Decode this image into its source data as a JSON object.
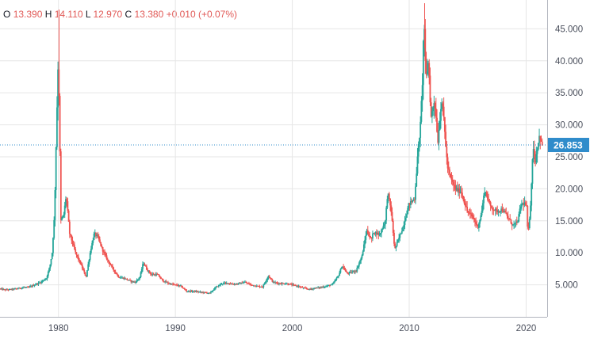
{
  "legend": {
    "open_key": "O",
    "open": "13.390",
    "high_key": "H",
    "high": "14.110",
    "low_key": "L",
    "low": "12.970",
    "close_key": "C",
    "close": "13.380",
    "change": "+0.010 (+0.07%)"
  },
  "last_price_label": "26.853",
  "colors": {
    "up": "#26a69a",
    "down": "#ef5350",
    "grid": "#e6e6e6",
    "axis_text": "#4a4f5c",
    "price_tag": "#2f8ccb",
    "price_line": "#2f8ccb"
  },
  "chart_data": {
    "type": "candlestick",
    "title": "",
    "xlabel": "",
    "ylabel": "",
    "xlim": [
      1975.0,
      2021.8
    ],
    "ylim": [
      0,
      49.5
    ],
    "x_ticks": [
      "1980",
      "1990",
      "2000",
      "2010",
      "2020"
    ],
    "y_ticks": [
      "5.000",
      "10.000",
      "15.000",
      "20.000",
      "25.000",
      "30.000",
      "35.000",
      "40.000",
      "45.000"
    ],
    "grid": true,
    "last_price": 26.853,
    "price_path": [
      [
        1975.0,
        4.4
      ],
      [
        1975.5,
        4.2
      ],
      [
        1976.0,
        4.3
      ],
      [
        1976.5,
        4.4
      ],
      [
        1977.0,
        4.6
      ],
      [
        1977.5,
        4.6
      ],
      [
        1978.0,
        5.0
      ],
      [
        1978.5,
        5.4
      ],
      [
        1979.0,
        6.0
      ],
      [
        1979.3,
        7.8
      ],
      [
        1979.5,
        10.0
      ],
      [
        1979.7,
        16.0
      ],
      [
        1979.85,
        28.0
      ],
      [
        1980.0,
        39.0
      ],
      [
        1980.1,
        34.0
      ],
      [
        1980.25,
        15.0
      ],
      [
        1980.5,
        16.0
      ],
      [
        1980.7,
        19.0
      ],
      [
        1981.0,
        13.0
      ],
      [
        1981.5,
        10.0
      ],
      [
        1982.0,
        8.0
      ],
      [
        1982.4,
        6.2
      ],
      [
        1982.8,
        10.5
      ],
      [
        1983.1,
        13.0
      ],
      [
        1983.4,
        12.5
      ],
      [
        1983.8,
        10.5
      ],
      [
        1984.2,
        9.0
      ],
      [
        1984.7,
        7.5
      ],
      [
        1985.2,
        6.2
      ],
      [
        1985.7,
        6.0
      ],
      [
        1986.2,
        5.6
      ],
      [
        1986.6,
        5.4
      ],
      [
        1987.0,
        6.2
      ],
      [
        1987.3,
        8.5
      ],
      [
        1987.6,
        7.4
      ],
      [
        1988.0,
        6.6
      ],
      [
        1988.5,
        6.6
      ],
      [
        1989.0,
        5.6
      ],
      [
        1989.5,
        5.2
      ],
      [
        1990.0,
        5.0
      ],
      [
        1990.5,
        4.8
      ],
      [
        1991.0,
        4.0
      ],
      [
        1991.5,
        4.0
      ],
      [
        1992.0,
        3.9
      ],
      [
        1992.5,
        3.8
      ],
      [
        1993.0,
        3.7
      ],
      [
        1993.5,
        4.6
      ],
      [
        1994.0,
        5.2
      ],
      [
        1994.5,
        5.3
      ],
      [
        1995.0,
        5.1
      ],
      [
        1995.5,
        5.2
      ],
      [
        1996.0,
        5.4
      ],
      [
        1996.5,
        5.0
      ],
      [
        1997.0,
        4.8
      ],
      [
        1997.5,
        4.7
      ],
      [
        1998.0,
        6.4
      ],
      [
        1998.4,
        5.4
      ],
      [
        1999.0,
        5.2
      ],
      [
        1999.5,
        5.2
      ],
      [
        2000.0,
        5.0
      ],
      [
        2000.5,
        4.8
      ],
      [
        2001.0,
        4.5
      ],
      [
        2001.5,
        4.3
      ],
      [
        2002.0,
        4.5
      ],
      [
        2002.5,
        4.6
      ],
      [
        2003.0,
        4.8
      ],
      [
        2003.5,
        5.1
      ],
      [
        2004.0,
        6.5
      ],
      [
        2004.3,
        8.0
      ],
      [
        2004.7,
        6.8
      ],
      [
        2005.0,
        6.9
      ],
      [
        2005.5,
        7.2
      ],
      [
        2006.0,
        9.5
      ],
      [
        2006.4,
        13.5
      ],
      [
        2006.8,
        12.0
      ],
      [
        2007.0,
        13.3
      ],
      [
        2007.5,
        12.8
      ],
      [
        2008.0,
        15.0
      ],
      [
        2008.2,
        19.5
      ],
      [
        2008.5,
        16.5
      ],
      [
        2008.8,
        10.5
      ],
      [
        2009.0,
        11.5
      ],
      [
        2009.5,
        14.0
      ],
      [
        2010.0,
        17.5
      ],
      [
        2010.5,
        18.5
      ],
      [
        2010.8,
        26.0
      ],
      [
        2011.0,
        30.0
      ],
      [
        2011.2,
        38.0
      ],
      [
        2011.3,
        47.5
      ],
      [
        2011.45,
        37.0
      ],
      [
        2011.7,
        40.0
      ],
      [
        2011.9,
        31.0
      ],
      [
        2012.2,
        34.0
      ],
      [
        2012.5,
        27.5
      ],
      [
        2012.8,
        34.0
      ],
      [
        2013.0,
        31.0
      ],
      [
        2013.3,
        23.5
      ],
      [
        2013.6,
        21.5
      ],
      [
        2014.0,
        20.0
      ],
      [
        2014.5,
        19.5
      ],
      [
        2015.0,
        16.5
      ],
      [
        2015.5,
        15.5
      ],
      [
        2015.9,
        14.0
      ],
      [
        2016.2,
        16.0
      ],
      [
        2016.5,
        19.8
      ],
      [
        2017.0,
        17.2
      ],
      [
        2017.5,
        16.5
      ],
      [
        2018.0,
        16.8
      ],
      [
        2018.5,
        15.5
      ],
      [
        2018.9,
        14.3
      ],
      [
        2019.3,
        14.8
      ],
      [
        2019.6,
        17.5
      ],
      [
        2019.9,
        17.8
      ],
      [
        2020.1,
        17.0
      ],
      [
        2020.2,
        12.5
      ],
      [
        2020.4,
        17.0
      ],
      [
        2020.55,
        23.0
      ],
      [
        2020.65,
        27.0
      ],
      [
        2020.8,
        24.0
      ],
      [
        2021.0,
        26.5
      ],
      [
        2021.2,
        28.5
      ],
      [
        2021.35,
        26.85
      ]
    ]
  }
}
